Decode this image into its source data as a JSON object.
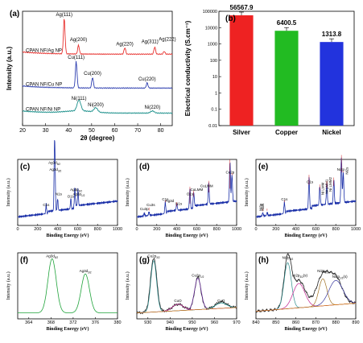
{
  "chart_data": [
    {
      "panel": "(a)",
      "type": "line",
      "xlabel": "2θ (degree)",
      "ylabel": "Intensity (a.u.)",
      "xlim": [
        20,
        85
      ],
      "xticks": [
        "20",
        "30",
        "40",
        "50",
        "60",
        "70",
        "80"
      ],
      "series": [
        {
          "name": "CPAN NF/Ag NP",
          "color": "#e8322f",
          "offset": 2.0,
          "peaks": [
            [
              38.1,
              1.0
            ],
            [
              44.3,
              0.25
            ],
            [
              64.4,
              0.18
            ],
            [
              77.4,
              0.2
            ],
            [
              81.5,
              0.08
            ]
          ]
        },
        {
          "name": "CPAN NF/Cu NP",
          "color": "#2e3fb0",
          "offset": 1.05,
          "peaks": [
            [
              43.3,
              0.75
            ],
            [
              50.4,
              0.3
            ],
            [
              74.1,
              0.15
            ]
          ]
        },
        {
          "name": "CPAN NF/Ni NP",
          "color": "#1a8f8a",
          "offset": 0.35,
          "peaks": [
            [
              44.5,
              0.3
            ],
            [
              51.8,
              0.12
            ],
            [
              76.4,
              0.06
            ]
          ]
        }
      ],
      "annotations": [
        {
          "text": "Ag(111)",
          "x": 38.1,
          "series": 0
        },
        {
          "text": "Ag(200)",
          "x": 44.3,
          "series": 0
        },
        {
          "text": "Ag(220)",
          "x": 64.4,
          "series": 0
        },
        {
          "text": "Ag(311)",
          "x": 77.4,
          "series": 0
        },
        {
          "text": "Ag(222)",
          "x": 81.5,
          "series": 0
        },
        {
          "text": "Cu(111)",
          "x": 43.3,
          "series": 1
        },
        {
          "text": "Cu(200)",
          "x": 50.4,
          "series": 1
        },
        {
          "text": "Cu(220)",
          "x": 74.1,
          "series": 1
        },
        {
          "text": "Ni(111)",
          "x": 44.5,
          "series": 2
        },
        {
          "text": "Ni(200)",
          "x": 51.8,
          "series": 2
        },
        {
          "text": "Ni(220)",
          "x": 76.4,
          "series": 2
        }
      ]
    },
    {
      "panel": "(b)",
      "type": "bar",
      "ylabel": "Electrical conductivity (S.cm⁻¹)",
      "yscale": "log",
      "ylim": [
        0.01,
        100000
      ],
      "yticks": [
        "0.01",
        "0.1",
        "1",
        "10",
        "100",
        "1000",
        "10000",
        "100000"
      ],
      "categories": [
        "Silver",
        "Copper",
        "Nickel"
      ],
      "values": [
        56567.9,
        6400.5,
        1313.8
      ],
      "value_labels": [
        "56567.9",
        "6400.5",
        "1313.8"
      ],
      "colors": [
        "#ee2222",
        "#22bb22",
        "#2233dd"
      ],
      "label_colors": [
        "#ee2222",
        "#22bb22",
        "#2233dd"
      ]
    },
    {
      "panel": "(c)",
      "type": "line",
      "xlabel": "Binding Energy (eV)",
      "ylabel": "Intensity (a.u.)",
      "xlim": [
        0,
        1000
      ],
      "xticks": [
        "0",
        "200",
        "400",
        "600",
        "800",
        "1000"
      ],
      "color": "#1a2fa8",
      "peaks": [
        [
          285,
          0.18
        ],
        [
          368,
          1.0
        ],
        [
          374,
          0.75
        ],
        [
          400,
          0.22
        ],
        [
          532,
          0.2
        ],
        [
          573,
          0.35
        ],
        [
          604,
          0.3
        ]
      ],
      "annotations": [
        "C1s",
        "Ag3d5/2",
        "Ag3d3/2",
        "N1s",
        "O1s",
        "Ag3p3/2",
        "Ag3p1/2"
      ]
    },
    {
      "panel": "(d)",
      "type": "line",
      "xlabel": "Binding Energy (eV)",
      "ylabel": "Intensity (a.u.)",
      "xlim": [
        0,
        1000
      ],
      "xticks": [
        "0",
        "200",
        "400",
        "600",
        "800",
        "1000"
      ],
      "color": "#1a2fa8",
      "peaks": [
        [
          75,
          0.05
        ],
        [
          122,
          0.06
        ],
        [
          285,
          0.22
        ],
        [
          400,
          0.12
        ],
        [
          532,
          0.38
        ],
        [
          570,
          0.25
        ],
        [
          720,
          0.4
        ],
        [
          933,
          0.75
        ],
        [
          953,
          0.5
        ]
      ],
      "annotations": [
        "Cu3p",
        "Cu3s",
        "C1s",
        "N1s",
        "Ag3d",
        "O1s",
        "CuLMM",
        "CuLMM",
        "Cu2p"
      ]
    },
    {
      "panel": "(e)",
      "type": "line",
      "xlabel": "Binding Energy (eV)",
      "ylabel": "Intensity (a.u.)",
      "xlim": [
        0,
        1000
      ],
      "xticks": [
        "0",
        "200",
        "400",
        "600",
        "800",
        "1000"
      ],
      "color": "#1a2fa8",
      "peaks": [
        [
          68,
          0.06
        ],
        [
          112,
          0.06
        ],
        [
          285,
          0.22
        ],
        [
          532,
          0.6
        ],
        [
          640,
          0.35
        ],
        [
          710,
          0.4
        ],
        [
          780,
          0.45
        ],
        [
          856,
          0.85
        ],
        [
          875,
          0.55
        ]
      ],
      "annotations": [
        "Ni3p",
        "Ni3s",
        "C1s",
        "O1s",
        "Ni LMM",
        "Ni LMM1",
        "Ni LMM2",
        "Ni2p",
        "Ni2s"
      ]
    },
    {
      "panel": "(f)",
      "type": "line",
      "xlabel": "Binding Energy (eV)",
      "ylabel": "Intensity (a.u.)",
      "xlim": [
        362,
        380
      ],
      "xticks": [
        "364",
        "368",
        "372",
        "376",
        "380"
      ],
      "color": "#1fa33a",
      "peaks": [
        [
          368.2,
          1.0
        ],
        [
          374.2,
          0.72
        ]
      ],
      "annotations": [
        "Ag3d5/2",
        "Ag3d3/2"
      ]
    },
    {
      "panel": "(g)",
      "type": "line",
      "xlabel": "Binding Energy (eV)",
      "ylabel": "Intensity (a.u.)",
      "xlim": [
        925,
        970
      ],
      "xticks": [
        "930",
        "940",
        "950",
        "960",
        "970"
      ],
      "color": "#222222",
      "peaks": [
        [
          932.6,
          1.0
        ],
        [
          943.5,
          0.12
        ],
        [
          952.5,
          0.6
        ],
        [
          963,
          0.12
        ]
      ],
      "annotations": [
        "Cu2p3/2",
        "CuO",
        "Cu2p1/2",
        "CuO"
      ]
    },
    {
      "panel": "(h)",
      "type": "line",
      "xlabel": "Binding Energy (eV)",
      "ylabel": "Intensity (a.u.)",
      "xlim": [
        840,
        890
      ],
      "xticks": [
        "840",
        "850",
        "860",
        "870",
        "880",
        "890"
      ],
      "color": "#222222",
      "peaks": [
        [
          855.9,
          0.9
        ],
        [
          861.5,
          0.5
        ],
        [
          873.5,
          0.55
        ],
        [
          880,
          0.48
        ]
      ],
      "annotations": [
        "Ni2p3/2",
        "Ni2p3/2(s)",
        "Ni2p1/2",
        "Ni2p1/2(s)"
      ]
    }
  ]
}
